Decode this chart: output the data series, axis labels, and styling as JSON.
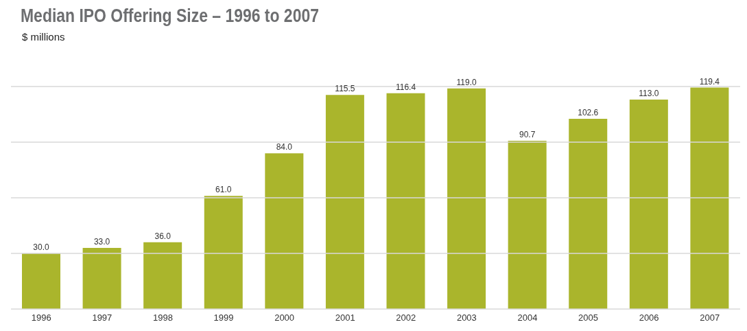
{
  "chart_data": {
    "type": "bar",
    "title": "Median IPO Offering Size – 1996 to 2007",
    "ylabel": "$ millions",
    "categories": [
      "1996",
      "1997",
      "1998",
      "1999",
      "2000",
      "2001",
      "2002",
      "2003",
      "2004",
      "2005",
      "2006",
      "2007"
    ],
    "values": [
      30.0,
      33.0,
      36.0,
      61.0,
      84.0,
      115.5,
      116.4,
      119.0,
      90.7,
      102.6,
      113.0,
      119.4
    ],
    "value_labels": [
      "30.0",
      "33.0",
      "36.0",
      "61.0",
      "84.0",
      "115.5",
      "116.4",
      "119.0",
      "90.7",
      "102.6",
      "113.0",
      "119.4"
    ],
    "color": "#aab52c",
    "ylim": [
      0,
      120
    ],
    "yticks": [
      {
        "value": 0,
        "label": null
      },
      {
        "value": 30,
        "label": null
      },
      {
        "value": 60,
        "label": null
      },
      {
        "value": 90,
        "label": null
      },
      {
        "value": 120,
        "label": null
      }
    ],
    "grid": "y",
    "tick_labels": "x"
  }
}
